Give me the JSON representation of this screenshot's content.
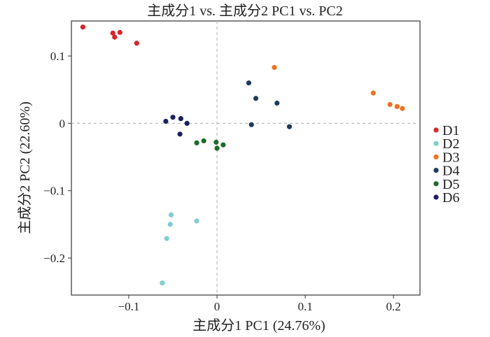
{
  "chart_data": {
    "type": "scatter",
    "title": "主成分1 vs. 主成分2 PC1 vs. PC2",
    "xlabel": "主成分1 PC1 (24.76%)",
    "ylabel": "主成分2 PC2 (22.60%)",
    "xlim": [
      -0.165,
      0.23
    ],
    "ylim": [
      -0.255,
      0.152
    ],
    "x_ticks": [
      {
        "value": -0.1,
        "label": "−0.1"
      },
      {
        "value": 0,
        "label": "0"
      },
      {
        "value": 0.1,
        "label": "0.1"
      },
      {
        "value": 0.2,
        "label": "0.2"
      }
    ],
    "y_ticks": [
      {
        "value": 0.1,
        "label": "0.1"
      },
      {
        "value": 0,
        "label": "0"
      },
      {
        "value": -0.1,
        "label": "−0.1"
      },
      {
        "value": -0.2,
        "label": "−0.2"
      }
    ],
    "reference_lines": {
      "x": 0,
      "y": 0,
      "style": "dashed"
    },
    "grid": false,
    "legend_position": "right",
    "series": [
      {
        "name": "D1",
        "color": "#d7262b",
        "points": [
          {
            "x": -0.152,
            "y": 0.143
          },
          {
            "x": -0.118,
            "y": 0.134
          },
          {
            "x": -0.11,
            "y": 0.135
          },
          {
            "x": -0.116,
            "y": 0.128
          },
          {
            "x": -0.091,
            "y": 0.119
          }
        ]
      },
      {
        "name": "D2",
        "color": "#7ecdd0",
        "points": [
          {
            "x": -0.052,
            "y": -0.136
          },
          {
            "x": -0.053,
            "y": -0.15
          },
          {
            "x": -0.023,
            "y": -0.145
          },
          {
            "x": -0.057,
            "y": -0.171
          },
          {
            "x": -0.062,
            "y": -0.237
          }
        ]
      },
      {
        "name": "D3",
        "color": "#ee7325",
        "points": [
          {
            "x": 0.065,
            "y": 0.083
          },
          {
            "x": 0.177,
            "y": 0.045
          },
          {
            "x": 0.196,
            "y": 0.028
          },
          {
            "x": 0.204,
            "y": 0.025
          },
          {
            "x": 0.21,
            "y": 0.022
          }
        ]
      },
      {
        "name": "D4",
        "color": "#1f3b5a",
        "points": [
          {
            "x": 0.036,
            "y": 0.06
          },
          {
            "x": 0.044,
            "y": 0.037
          },
          {
            "x": 0.068,
            "y": 0.03
          },
          {
            "x": 0.039,
            "y": -0.002
          },
          {
            "x": 0.082,
            "y": -0.005
          }
        ]
      },
      {
        "name": "D5",
        "color": "#1f6a2a",
        "points": [
          {
            "x": -0.023,
            "y": -0.029
          },
          {
            "x": -0.015,
            "y": -0.026
          },
          {
            "x": -0.001,
            "y": -0.028
          },
          {
            "x": 0.0,
            "y": -0.037
          },
          {
            "x": 0.007,
            "y": -0.032
          }
        ]
      },
      {
        "name": "D6",
        "color": "#1c1f5e",
        "points": [
          {
            "x": -0.058,
            "y": 0.003
          },
          {
            "x": -0.05,
            "y": 0.009
          },
          {
            "x": -0.041,
            "y": 0.007
          },
          {
            "x": -0.034,
            "y": 0.0
          },
          {
            "x": -0.042,
            "y": -0.016
          }
        ]
      }
    ]
  }
}
